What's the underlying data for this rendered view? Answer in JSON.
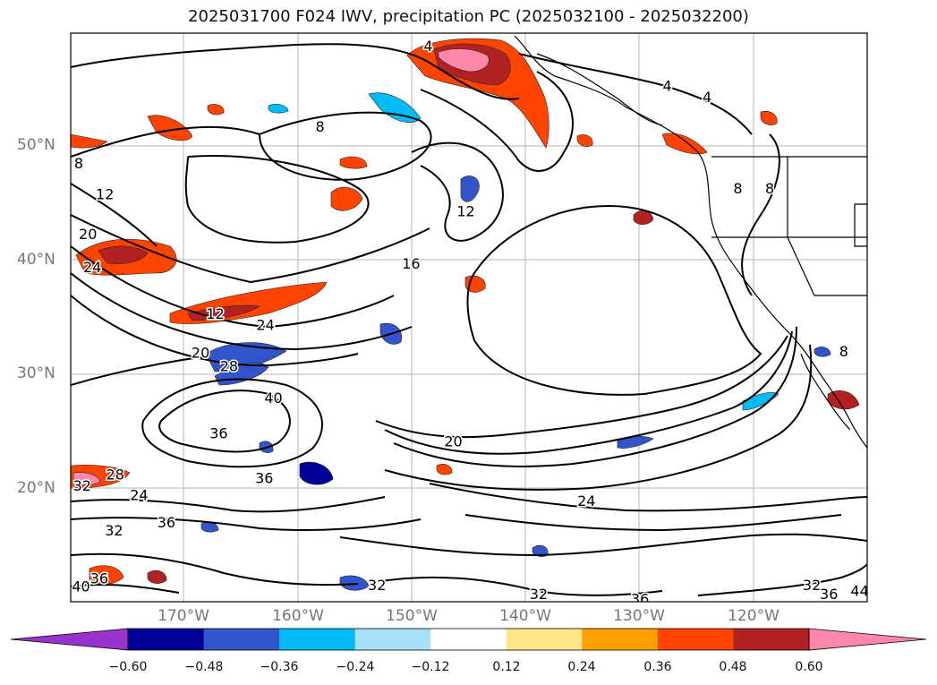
{
  "title": "2025031700 F024 IWV, precipitation PC (2025032100 - 2025032200)",
  "lat_labels": [
    "50°N",
    "40°N",
    "30°N",
    "20°N"
  ],
  "lon_labels": [
    "170°W",
    "160°W",
    "150°W",
    "140°W",
    "130°W",
    "120°W"
  ],
  "colorbar": {
    "ticks": [
      "−0.60",
      "−0.48",
      "−0.36",
      "−0.24",
      "−0.12",
      "0.12",
      "0.24",
      "0.36",
      "0.48",
      "0.60"
    ],
    "colors": [
      "#9933cc",
      "#000099",
      "#3355cc",
      "#00bbf5",
      "#aadffa",
      "#ffffff",
      "#ffe58a",
      "#ff9f00",
      "#ff4400",
      "#b22222",
      "#ff88aa"
    ]
  },
  "contour_labels": [
    {
      "text": "4",
      "lon": -148.5,
      "lat": 58.7
    },
    {
      "text": "4",
      "lon": -127.5,
      "lat": 55.2
    },
    {
      "text": "4",
      "lon": -124.0,
      "lat": 54.2
    },
    {
      "text": "8",
      "lon": -158.0,
      "lat": 51.6
    },
    {
      "text": "8",
      "lon": -179.2,
      "lat": 48.4
    },
    {
      "text": "8",
      "lon": -121.3,
      "lat": 46.2
    },
    {
      "text": "8",
      "lon": -118.5,
      "lat": 46.2
    },
    {
      "text": "8",
      "lon": -112.0,
      "lat": 31.9
    },
    {
      "text": "12",
      "lon": -176.9,
      "lat": 45.7
    },
    {
      "text": "12",
      "lon": -145.2,
      "lat": 44.2
    },
    {
      "text": "12",
      "lon": -167.2,
      "lat": 35.2
    },
    {
      "text": "16",
      "lon": -150.0,
      "lat": 39.6
    },
    {
      "text": "20",
      "lon": -178.4,
      "lat": 42.2
    },
    {
      "text": "20",
      "lon": -168.5,
      "lat": 31.8
    },
    {
      "text": "20",
      "lon": -146.3,
      "lat": 24.0
    },
    {
      "text": "24",
      "lon": -178.0,
      "lat": 39.3
    },
    {
      "text": "24",
      "lon": -162.8,
      "lat": 34.2
    },
    {
      "text": "24",
      "lon": -173.9,
      "lat": 19.3
    },
    {
      "text": "24",
      "lon": -134.6,
      "lat": 18.8
    },
    {
      "text": "28",
      "lon": -166.0,
      "lat": 30.6
    },
    {
      "text": "28",
      "lon": -176.0,
      "lat": 21.1
    },
    {
      "text": "32",
      "lon": -178.9,
      "lat": 20.1
    },
    {
      "text": "32",
      "lon": -176.1,
      "lat": 16.2
    },
    {
      "text": "32",
      "lon": -153.0,
      "lat": 11.4
    },
    {
      "text": "32",
      "lon": -138.8,
      "lat": 10.6
    },
    {
      "text": "32",
      "lon": -114.8,
      "lat": 11.4
    },
    {
      "text": "36",
      "lon": -166.9,
      "lat": 24.7
    },
    {
      "text": "36",
      "lon": -171.5,
      "lat": 16.9
    },
    {
      "text": "36",
      "lon": -162.9,
      "lat": 20.8
    },
    {
      "text": "36",
      "lon": -177.4,
      "lat": 12.0
    },
    {
      "text": "36",
      "lon": -129.9,
      "lat": 10.2
    },
    {
      "text": "36",
      "lon": -113.3,
      "lat": 10.6
    },
    {
      "text": "40",
      "lon": -162.1,
      "lat": 27.8
    },
    {
      "text": "40",
      "lon": -179.0,
      "lat": 11.3
    },
    {
      "text": "44",
      "lon": -110.6,
      "lat": 10.9
    }
  ]
}
